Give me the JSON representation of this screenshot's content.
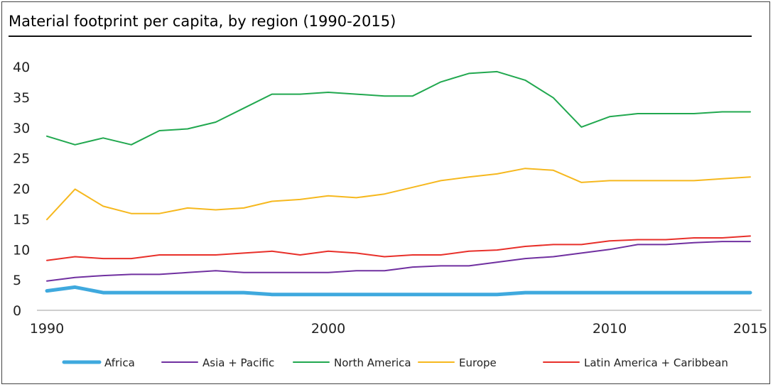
{
  "chart_data": {
    "type": "line",
    "title": "Material footprint per capita, by region (1990-2015)",
    "xlabel": "",
    "ylabel": "",
    "x": [
      1990,
      1991,
      1992,
      1993,
      1994,
      1995,
      1996,
      1997,
      1998,
      1999,
      2000,
      2001,
      2002,
      2003,
      2004,
      2005,
      2006,
      2007,
      2008,
      2009,
      2010,
      2011,
      2012,
      2013,
      2014,
      2015
    ],
    "x_tick_labels": [
      "1990",
      "2000",
      "2010",
      "2015"
    ],
    "x_ticks": [
      1990,
      2000,
      2010,
      2015
    ],
    "y_ticks": [
      0,
      5,
      10,
      15,
      20,
      25,
      30,
      35,
      40
    ],
    "xlim": [
      1990,
      2015
    ],
    "ylim": [
      0,
      40
    ],
    "grid": false,
    "legend_position": "bottom",
    "series": [
      {
        "name": "Africa",
        "color": "#3FA9DE",
        "width": 5,
        "values": [
          3.2,
          3.8,
          2.9,
          2.9,
          2.9,
          2.9,
          2.9,
          2.9,
          2.6,
          2.6,
          2.6,
          2.6,
          2.6,
          2.6,
          2.6,
          2.6,
          2.6,
          2.9,
          2.9,
          2.9,
          2.9,
          2.9,
          2.9,
          2.9,
          2.9,
          2.9
        ]
      },
      {
        "name": "Asia + Pacific",
        "color": "#7030A0",
        "width": 2,
        "values": [
          4.8,
          5.4,
          5.7,
          5.9,
          5.9,
          6.2,
          6.5,
          6.2,
          6.2,
          6.2,
          6.2,
          6.5,
          6.5,
          7.1,
          7.3,
          7.3,
          7.9,
          8.5,
          8.8,
          9.4,
          10,
          10.8,
          10.8,
          11.1,
          11.3,
          11.3
        ]
      },
      {
        "name": "North America",
        "color": "#21A84F",
        "width": 2,
        "values": [
          28.6,
          27.2,
          28.3,
          27.2,
          29.5,
          29.8,
          30.9,
          33.2,
          35.5,
          35.5,
          35.8,
          35.5,
          35.2,
          35.2,
          37.5,
          38.9,
          39.2,
          37.8,
          34.9,
          30.1,
          31.8,
          32.3,
          32.3,
          32.3,
          32.6,
          32.6
        ]
      },
      {
        "name": "Europe",
        "color": "#F6B81E",
        "width": 2,
        "values": [
          14.9,
          19.9,
          17.1,
          15.9,
          15.9,
          16.8,
          16.5,
          16.8,
          17.9,
          18.2,
          18.8,
          18.5,
          19.1,
          20.2,
          21.3,
          21.9,
          22.4,
          23.3,
          23,
          21,
          21.3,
          21.3,
          21.3,
          21.3,
          21.6,
          21.9
        ]
      },
      {
        "name": "Latin America + Caribbean",
        "color": "#E8302A",
        "width": 2,
        "values": [
          8.2,
          8.8,
          8.5,
          8.5,
          9.1,
          9.1,
          9.1,
          9.4,
          9.7,
          9.1,
          9.7,
          9.4,
          8.8,
          9.1,
          9.1,
          9.7,
          9.9,
          10.5,
          10.8,
          10.8,
          11.4,
          11.6,
          11.6,
          11.9,
          11.9,
          12.2
        ]
      }
    ]
  }
}
